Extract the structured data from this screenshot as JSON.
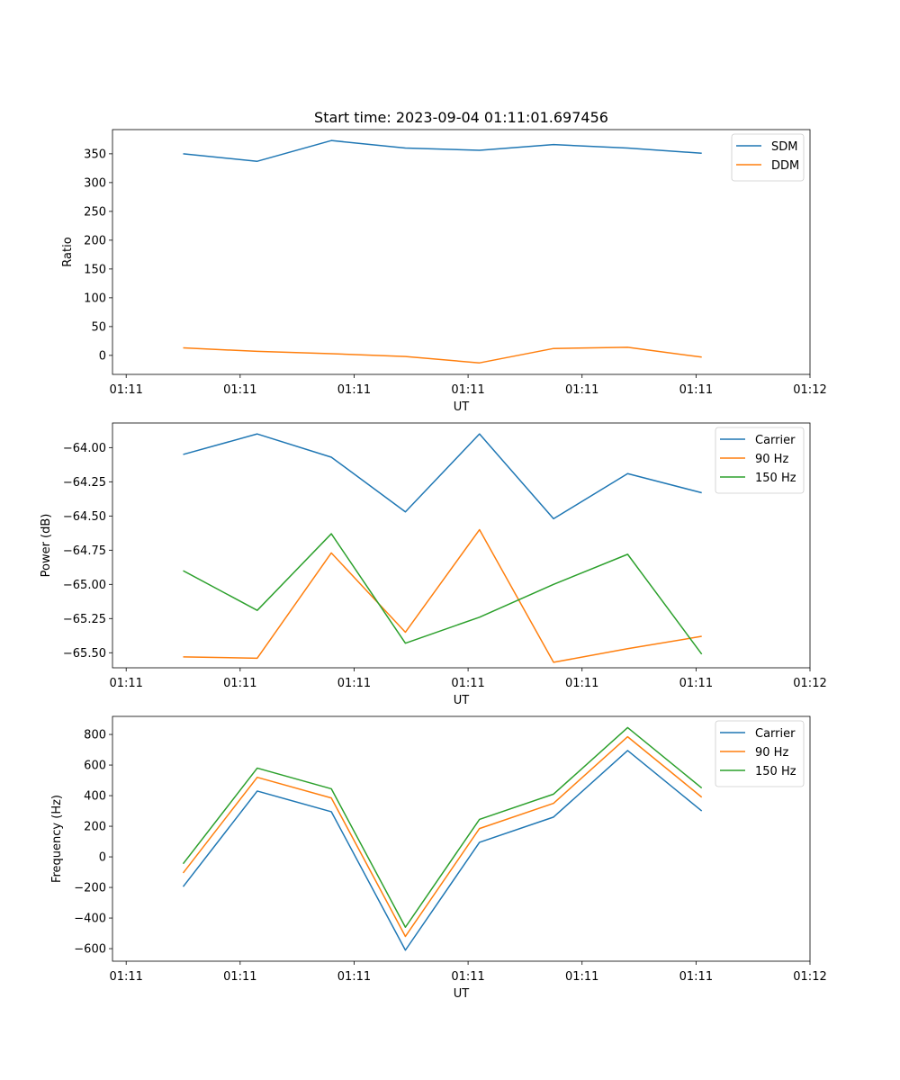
{
  "figure": {
    "title": "Start time: 2023-09-04 01:11:01.697456"
  },
  "colors": {
    "blue": "#1f77b4",
    "orange": "#ff7f0e",
    "green": "#2ca02c"
  },
  "chart_data": [
    {
      "type": "line",
      "title": "Start time: 2023-09-04 01:11:01.697456",
      "xlabel": "UT",
      "ylabel": "Ratio",
      "x_tick_labels": [
        "01:11",
        "01:11",
        "01:11",
        "01:11",
        "01:11",
        "01:11",
        "01:12"
      ],
      "x_ticks": [
        0,
        1,
        2,
        3,
        4,
        5,
        6
      ],
      "xlim": [
        -0.12,
        6.0
      ],
      "y_ticks": [
        0,
        50,
        100,
        150,
        200,
        250,
        300,
        350
      ],
      "ylim": [
        -33,
        392
      ],
      "legend": "top-right",
      "x": [
        0.5,
        1.15,
        1.8,
        2.45,
        3.1,
        3.75,
        4.4,
        5.05
      ],
      "series": [
        {
          "name": "SDM",
          "color": "#1f77b4",
          "values": [
            350,
            337,
            373,
            360,
            356,
            366,
            360,
            351
          ]
        },
        {
          "name": "DDM",
          "color": "#ff7f0e",
          "values": [
            13,
            7,
            3,
            -2,
            -13,
            12,
            14,
            -3
          ]
        }
      ]
    },
    {
      "type": "line",
      "title": "",
      "xlabel": "UT",
      "ylabel": "Power (dB)",
      "x_tick_labels": [
        "01:11",
        "01:11",
        "01:11",
        "01:11",
        "01:11",
        "01:11",
        "01:12"
      ],
      "x_ticks": [
        0,
        1,
        2,
        3,
        4,
        5,
        6
      ],
      "xlim": [
        -0.12,
        6.0
      ],
      "y_ticks": [
        -64.0,
        -64.25,
        -64.5,
        -64.75,
        -65.0,
        -65.25,
        -65.5
      ],
      "y_tick_labels": [
        "−64.00",
        "−64.25",
        "−64.50",
        "−64.75",
        "−65.00",
        "−65.25",
        "−65.50"
      ],
      "ylim": [
        -65.61,
        -63.82
      ],
      "legend": "top-right",
      "x": [
        0.5,
        1.15,
        1.8,
        2.45,
        3.1,
        3.75,
        4.4,
        5.05
      ],
      "series": [
        {
          "name": "Carrier",
          "color": "#1f77b4",
          "values": [
            -64.05,
            -63.9,
            -64.07,
            -64.47,
            -63.9,
            -64.52,
            -64.19,
            -64.33
          ]
        },
        {
          "name": "90 Hz",
          "color": "#ff7f0e",
          "values": [
            -65.53,
            -65.54,
            -64.77,
            -65.35,
            -64.6,
            -65.57,
            -65.47,
            -65.38
          ]
        },
        {
          "name": "150 Hz",
          "color": "#2ca02c",
          "values": [
            -64.9,
            -65.19,
            -64.63,
            -65.43,
            -65.24,
            -65.0,
            -64.78,
            -65.51
          ]
        }
      ]
    },
    {
      "type": "line",
      "title": "",
      "xlabel": "UT",
      "ylabel": "Frequency (Hz)",
      "x_tick_labels": [
        "01:11",
        "01:11",
        "01:11",
        "01:11",
        "01:11",
        "01:11",
        "01:12"
      ],
      "x_ticks": [
        0,
        1,
        2,
        3,
        4,
        5,
        6
      ],
      "xlim": [
        -0.12,
        6.0
      ],
      "y_ticks": [
        800,
        600,
        400,
        200,
        0,
        -200,
        -400,
        -600
      ],
      "y_tick_labels": [
        "800",
        "600",
        "400",
        "200",
        "0",
        "−200",
        "−400",
        "−600"
      ],
      "ylim": [
        -682,
        918
      ],
      "legend": "top-right",
      "x": [
        0.5,
        1.15,
        1.8,
        2.45,
        3.1,
        3.75,
        4.4,
        5.05
      ],
      "series": [
        {
          "name": "Carrier",
          "color": "#1f77b4",
          "values": [
            -195,
            430,
            295,
            -610,
            95,
            260,
            695,
            300
          ]
        },
        {
          "name": "90 Hz",
          "color": "#ff7f0e",
          "values": [
            -105,
            520,
            385,
            -520,
            185,
            350,
            785,
            390
          ]
        },
        {
          "name": "150 Hz",
          "color": "#2ca02c",
          "values": [
            -45,
            580,
            445,
            -460,
            245,
            410,
            845,
            450
          ]
        }
      ]
    }
  ]
}
